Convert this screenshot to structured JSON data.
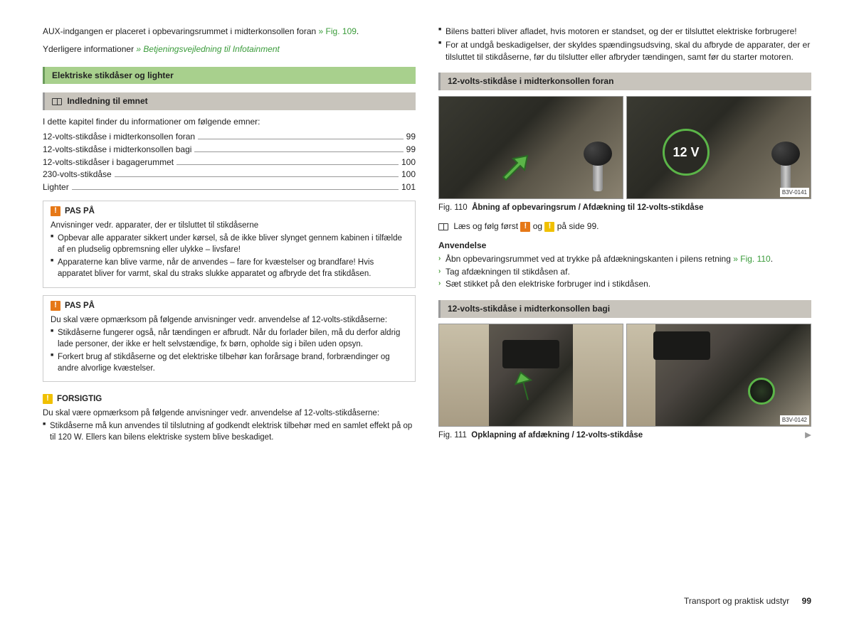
{
  "left": {
    "intro_line1_a": "AUX-indgangen er placeret i opbevaringsrummet i midterkonsollen foran ",
    "intro_line1_link": "» Fig. 109",
    "intro_line1_b": ".",
    "intro_line2_a": "Yderligere informationer ",
    "intro_line2_link": "» Betjeningsvejledning til Infotainment",
    "section1_title": "Elektriske stikdåser og lighter",
    "section2_title": "Indledning til emnet",
    "toc_intro": "I dette kapitel finder du informationer om følgende emner:",
    "toc": [
      {
        "label": "12-volts-stikdåse i midterkonsollen foran",
        "page": "99"
      },
      {
        "label": "12-volts-stikdåse i midterkonsollen bagi",
        "page": "99"
      },
      {
        "label": "12-volts-stikdåser i bagagerummet",
        "page": "100"
      },
      {
        "label": "230-volts-stikdåse",
        "page": "100"
      },
      {
        "label": "Lighter",
        "page": "101"
      }
    ],
    "warn1": {
      "title": "PAS PÅ",
      "line1": "Anvisninger vedr. apparater, der er tilsluttet til stikdåserne",
      "b1": "Opbevar alle apparater sikkert under kørsel, så de ikke bliver slynget gennem kabinen i tilfælde af en pludselig opbremsning eller ulykke – livsfare!",
      "b2": "Apparaterne kan blive varme, når de anvendes – fare for kvæstelser og brandfare! Hvis apparatet bliver for varmt, skal du straks slukke apparatet og afbryde det fra stikdåsen."
    },
    "warn2": {
      "title": "PAS PÅ",
      "line1": "Du skal være opmærksom på følgende anvisninger vedr. anvendelse af 12-volts-stikdåserne:",
      "b1": "Stikdåserne fungerer også, når tændingen er afbrudt. Når du forlader bilen, må du derfor aldrig lade personer, der ikke er helt selvstændige, fx børn, opholde sig i bilen uden opsyn.",
      "b2": "Forkert brug af stikdåserne og det elektriske tilbehør kan forårsage brand, forbrændinger og andre alvorlige kvæstelser."
    },
    "warn3": {
      "title": "FORSIGTIG",
      "line1": "Du skal være opmærksom på følgende anvisninger vedr. anvendelse af 12-volts-stikdåserne:",
      "b1": "Stikdåserne må kun anvendes til tilslutning af godkendt elektrisk tilbehør med en samlet effekt på op til 120 W. Ellers kan bilens elektriske system blive beskadiget."
    }
  },
  "right": {
    "top_b1": "Bilens batteri bliver afladet, hvis motoren er standset, og der er tilsluttet elektriske forbrugere!",
    "top_b2": "For at undgå beskadigelser, der skyldes spændingsudsving, skal du afbryde de apparater, der er tilsluttet til stikdåserne, før du tilslutter eller afbryder tændingen, samt før du starter motoren.",
    "section1_title": "12-volts-stikdåse i midterkonsollen foran",
    "fig110": {
      "badge_12v": "12 V",
      "code": "B3V-0141",
      "caption_num": "Fig. 110",
      "caption_text": "Åbning af opbevaringsrum / Afdækning til 12-volts-stikdåse"
    },
    "read_first_a": "Læs og følg først ",
    "read_first_b": " og ",
    "read_first_c": " på side 99.",
    "usage_title": "Anvendelse",
    "steps": [
      {
        "text_a": "Åbn opbevaringsrummet ved at trykke på afdækningskanten i pilens retning",
        "link": "» Fig. 110",
        "text_b": "."
      },
      {
        "text_a": "Tag afdækningen til stikdåsen af."
      },
      {
        "text_a": "Sæt stikket på den elektriske forbruger ind i stikdåsen."
      }
    ],
    "section2_title": "12-volts-stikdåse i midterkonsollen bagi",
    "fig111": {
      "code": "B3V-0142",
      "caption_num": "Fig. 111",
      "caption_text": "Opklapning af afdækning / 12-volts-stikdåse"
    }
  },
  "footer": {
    "section": "Transport og praktisk udstyr",
    "page": "99"
  }
}
